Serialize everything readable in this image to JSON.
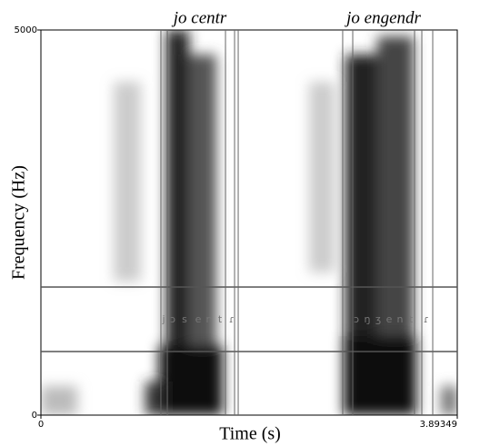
{
  "chart_data": {
    "type": "spectrogram",
    "xlabel": "Time (s)",
    "ylabel": "Frequency (Hz)",
    "xlim": [
      0,
      3.89349
    ],
    "ylim": [
      0,
      5000
    ],
    "xticks": [
      0,
      3.89349
    ],
    "yticks": [
      0,
      5000
    ],
    "words": [
      {
        "label": "jo centr",
        "x": 1.488
      },
      {
        "label": "jo engendr",
        "x": 3.205
      }
    ],
    "segments": [
      {
        "label": "j",
        "x": 1.148
      },
      {
        "label": "ɔ",
        "x": 1.233
      },
      {
        "label": "s",
        "x": 1.343
      },
      {
        "label": "e",
        "x": 1.471
      },
      {
        "label": "n",
        "x": 1.573
      },
      {
        "label": "t",
        "x": 1.675
      },
      {
        "label": "ɾ",
        "x": 1.785
      },
      {
        "label": "ɔ",
        "x": 2.95
      },
      {
        "label": "ŋ",
        "x": 3.052
      },
      {
        "label": "ʒ",
        "x": 3.154
      },
      {
        "label": "e",
        "x": 3.256
      },
      {
        "label": "n",
        "x": 3.358
      },
      {
        "label": "t",
        "x": 3.46
      },
      {
        "label": "ɾ",
        "x": 3.604
      }
    ],
    "boundaries": [
      1.122,
      1.182,
      1.726,
      1.811,
      1.845,
      2.822,
      2.916,
      3.494,
      3.562,
      3.664
    ]
  }
}
